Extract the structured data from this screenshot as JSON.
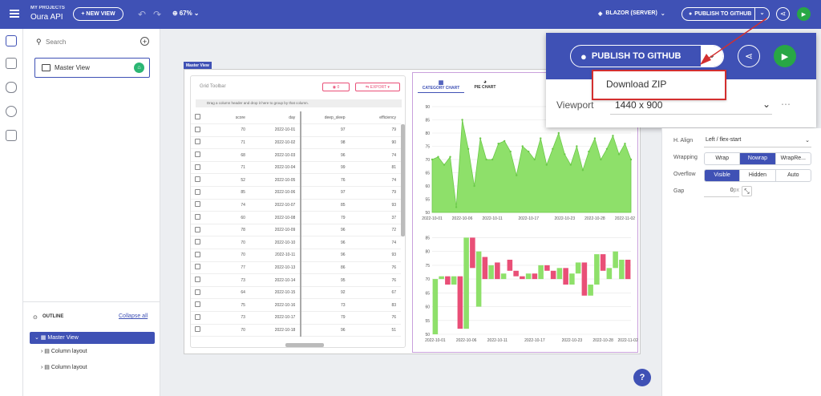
{
  "header": {
    "breadcrumb": "MY PROJECTS",
    "project": "Oura API",
    "new_view": "+ NEW VIEW",
    "zoom": "67%",
    "platform": "BLAZOR (SERVER)",
    "publish": "PUBLISH TO GITHUB"
  },
  "left": {
    "search_placeholder": "Search",
    "master_view": "Master View",
    "outline_label": "OUTLINE",
    "collapse_all": "Collapse all",
    "tree": [
      "Master View",
      "Column layout",
      "Column layout"
    ]
  },
  "canvas": {
    "frame_label": "Master View",
    "grid_toolbar": "Grid Toolbar",
    "badge_count": "0",
    "export": "EXPORT",
    "group_hint": "Drag a column header and drop it here to group by that column.",
    "columns": [
      "score",
      "day",
      "deep_sleep",
      "efficiency"
    ],
    "rows": [
      [
        "70",
        "2022-10-01",
        "97",
        "79"
      ],
      [
        "71",
        "2022-10-02",
        "98",
        "90"
      ],
      [
        "68",
        "2022-10-03",
        "96",
        "74"
      ],
      [
        "71",
        "2022-10-04",
        "99",
        "81"
      ],
      [
        "52",
        "2022-10-05",
        "76",
        "74"
      ],
      [
        "85",
        "2022-10-06",
        "97",
        "79"
      ],
      [
        "74",
        "2022-10-07",
        "85",
        "93"
      ],
      [
        "60",
        "2022-10-08",
        "79",
        "37"
      ],
      [
        "78",
        "2022-10-09",
        "96",
        "72"
      ],
      [
        "70",
        "2022-10-10",
        "96",
        "74"
      ],
      [
        "70",
        "2022-10-11",
        "96",
        "93"
      ],
      [
        "77",
        "2022-10-13",
        "86",
        "76"
      ],
      [
        "73",
        "2022-10-14",
        "95",
        "76"
      ],
      [
        "64",
        "2022-10-15",
        "92",
        "67"
      ],
      [
        "75",
        "2022-10-16",
        "73",
        "83"
      ],
      [
        "73",
        "2022-10-17",
        "79",
        "76"
      ],
      [
        "70",
        "2022-10-18",
        "96",
        "51"
      ]
    ],
    "tabs": [
      "CATEGORY CHART",
      "PIE CHART"
    ]
  },
  "popup": {
    "publish": "PUBLISH TO GITHUB",
    "download": "Download ZIP",
    "viewport_label": "Viewport",
    "viewport_value": "1440 x 900"
  },
  "props": {
    "halign_label": "H. Align",
    "halign_value": "Left / flex-start",
    "wrapping_label": "Wrapping",
    "wrapping_opts": [
      "Wrap",
      "Nowrap",
      "WrapRe..."
    ],
    "overflow_label": "Overflow",
    "overflow_opts": [
      "Visible",
      "Hidden",
      "Auto"
    ],
    "gap_label": "Gap",
    "gap_value": "0",
    "gap_unit": "px"
  },
  "help": "?",
  "colors": {
    "primary": "#3f51b5",
    "green": "#8ee06a",
    "red": "#e94f77",
    "annotation": "#d32f2f"
  },
  "chart_data": [
    {
      "type": "area",
      "x": [
        "2022-10-01",
        "2022-10-02",
        "2022-10-03",
        "2022-10-04",
        "2022-10-05",
        "2022-10-06",
        "2022-10-07",
        "2022-10-08",
        "2022-10-09",
        "2022-10-10",
        "2022-10-11",
        "2022-10-12",
        "2022-10-13",
        "2022-10-14",
        "2022-10-15",
        "2022-10-16",
        "2022-10-17",
        "2022-10-18",
        "2022-10-19",
        "2022-10-20",
        "2022-10-21",
        "2022-10-22",
        "2022-10-23",
        "2022-10-24",
        "2022-10-25",
        "2022-10-26",
        "2022-10-27",
        "2022-10-28",
        "2022-10-29",
        "2022-10-30",
        "2022-10-31",
        "2022-11-01",
        "2022-11-02",
        "2022-11-03"
      ],
      "values": [
        70,
        71,
        68,
        71,
        52,
        85,
        74,
        60,
        78,
        70,
        70,
        76,
        77,
        73,
        64,
        75,
        73,
        70,
        78,
        68,
        74,
        80,
        72,
        68,
        75,
        66,
        73,
        78,
        70,
        74,
        79,
        72,
        76,
        70
      ],
      "yticks": [
        50,
        55,
        60,
        65,
        70,
        75,
        80,
        85,
        90
      ],
      "xticks": [
        "2022-10-01",
        "2022-10-06",
        "2022-10-11",
        "2022-10-17",
        "2022-10-23",
        "2022-10-28",
        "2022-11-02"
      ],
      "ylim": [
        50,
        90
      ]
    },
    {
      "type": "bar",
      "x": [
        "2022-10-01",
        "2022-10-02",
        "2022-10-03",
        "2022-10-04",
        "2022-10-05",
        "2022-10-06",
        "2022-10-07",
        "2022-10-08",
        "2022-10-09",
        "2022-10-10",
        "2022-10-11",
        "2022-10-12",
        "2022-10-13",
        "2022-10-14",
        "2022-10-15",
        "2022-10-16",
        "2022-10-17",
        "2022-10-18",
        "2022-10-19",
        "2022-10-20",
        "2022-10-21",
        "2022-10-22",
        "2022-10-23",
        "2022-10-24",
        "2022-10-25",
        "2022-10-26",
        "2022-10-27",
        "2022-10-28",
        "2022-10-29",
        "2022-10-30",
        "2022-10-31",
        "2022-11-02"
      ],
      "open": [
        50,
        70,
        71,
        68,
        71,
        52,
        85,
        60,
        78,
        70,
        76,
        70,
        77,
        73,
        71,
        70,
        72,
        70,
        75,
        73,
        70,
        74,
        68,
        72,
        76,
        64,
        68,
        79,
        70,
        74,
        70,
        77
      ],
      "close": [
        70,
        71,
        68,
        71,
        52,
        85,
        74,
        80,
        70,
        75,
        70,
        72,
        73,
        71,
        70,
        72,
        70,
        75,
        73,
        70,
        74,
        68,
        72,
        76,
        64,
        68,
        79,
        73,
        74,
        80,
        77,
        70
      ],
      "yticks": [
        50,
        55,
        60,
        65,
        70,
        75,
        80,
        85
      ],
      "xticks": [
        "2022-10-01",
        "2022-10-06",
        "2022-10-11",
        "2022-10-17",
        "2022-10-23",
        "2022-10-28",
        "2022-11-02"
      ],
      "ylim": [
        50,
        86
      ]
    }
  ]
}
